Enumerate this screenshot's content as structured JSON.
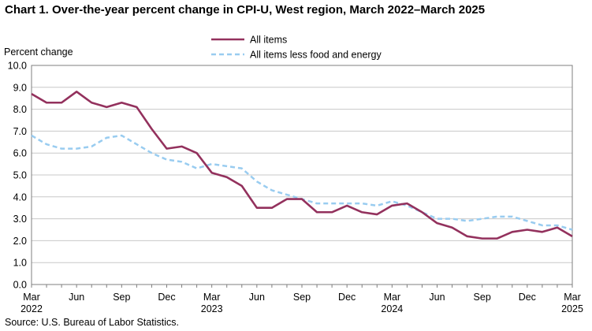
{
  "chart_data": {
    "type": "line",
    "title": "Chart 1. Over-the-year percent change in CPI-U, West region, March 2022–March 2025",
    "ylabel": "Percent change",
    "xlabel": "",
    "ylim": [
      0,
      10
    ],
    "yticks": [
      "0.0",
      "1.0",
      "2.0",
      "3.0",
      "4.0",
      "5.0",
      "6.0",
      "7.0",
      "8.0",
      "9.0",
      "10.0"
    ],
    "grid": true,
    "legend_position": "top-center",
    "x": [
      "Mar 2022",
      "Apr 2022",
      "May 2022",
      "Jun 2022",
      "Jul 2022",
      "Aug 2022",
      "Sep 2022",
      "Oct 2022",
      "Nov 2022",
      "Dec 2022",
      "Jan 2023",
      "Feb 2023",
      "Mar 2023",
      "Apr 2023",
      "May 2023",
      "Jun 2023",
      "Jul 2023",
      "Aug 2023",
      "Sep 2023",
      "Oct 2023",
      "Nov 2023",
      "Dec 2023",
      "Jan 2024",
      "Feb 2024",
      "Mar 2024",
      "Apr 2024",
      "May 2024",
      "Jun 2024",
      "Jul 2024",
      "Aug 2024",
      "Sep 2024",
      "Oct 2024",
      "Nov 2024",
      "Dec 2024",
      "Jan 2025",
      "Feb 2025",
      "Mar 2025"
    ],
    "xtick_labels": [
      {
        "index": 0,
        "month": "Mar",
        "year": "2022"
      },
      {
        "index": 3,
        "month": "Jun",
        "year": ""
      },
      {
        "index": 6,
        "month": "Sep",
        "year": ""
      },
      {
        "index": 9,
        "month": "Dec",
        "year": ""
      },
      {
        "index": 12,
        "month": "Mar",
        "year": "2023"
      },
      {
        "index": 15,
        "month": "Jun",
        "year": ""
      },
      {
        "index": 18,
        "month": "Sep",
        "year": ""
      },
      {
        "index": 21,
        "month": "Dec",
        "year": ""
      },
      {
        "index": 24,
        "month": "Mar",
        "year": "2024"
      },
      {
        "index": 27,
        "month": "Jun",
        "year": ""
      },
      {
        "index": 30,
        "month": "Sep",
        "year": ""
      },
      {
        "index": 33,
        "month": "Dec",
        "year": ""
      },
      {
        "index": 36,
        "month": "Mar",
        "year": "2025"
      }
    ],
    "series": [
      {
        "name": "All items",
        "color": "#93315d",
        "style": "solid",
        "values": [
          8.7,
          8.3,
          8.3,
          8.8,
          8.3,
          8.1,
          8.3,
          8.1,
          7.1,
          6.2,
          6.3,
          6.0,
          5.1,
          4.9,
          4.5,
          3.5,
          3.5,
          3.9,
          3.9,
          3.3,
          3.3,
          3.6,
          3.3,
          3.2,
          3.6,
          3.7,
          3.3,
          2.8,
          2.6,
          2.2,
          2.1,
          2.1,
          2.4,
          2.5,
          2.4,
          2.6,
          2.2
        ]
      },
      {
        "name": "All items less food and energy",
        "color": "#99ccf0",
        "style": "dashed",
        "values": [
          6.8,
          6.4,
          6.2,
          6.2,
          6.3,
          6.7,
          6.8,
          6.4,
          6.0,
          5.7,
          5.6,
          5.3,
          5.5,
          5.4,
          5.3,
          4.7,
          4.3,
          4.1,
          3.9,
          3.7,
          3.7,
          3.7,
          3.7,
          3.6,
          3.8,
          3.6,
          3.3,
          3.0,
          3.0,
          2.9,
          3.0,
          3.1,
          3.1,
          2.9,
          2.7,
          2.7,
          2.5
        ]
      }
    ]
  },
  "source": "Source: U.S. Bureau of Labor Statistics."
}
